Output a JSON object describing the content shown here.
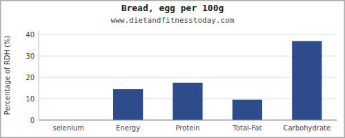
{
  "chart_data": {
    "type": "bar",
    "title": "Bread, egg per 100g",
    "subtitle": "www.dietandfitnesstoday.com",
    "categories": [
      "selenium",
      "Energy",
      "Protein",
      "Total-Fat",
      "Carbohydrate"
    ],
    "values": [
      0,
      14.5,
      17.5,
      9.5,
      37
    ],
    "color": "#2e4b8c",
    "ylabel": "Percentage of RDH (%)",
    "ylim": [
      0,
      42
    ],
    "yticks": [
      0,
      10,
      20,
      30,
      40
    ],
    "grid": true
  }
}
